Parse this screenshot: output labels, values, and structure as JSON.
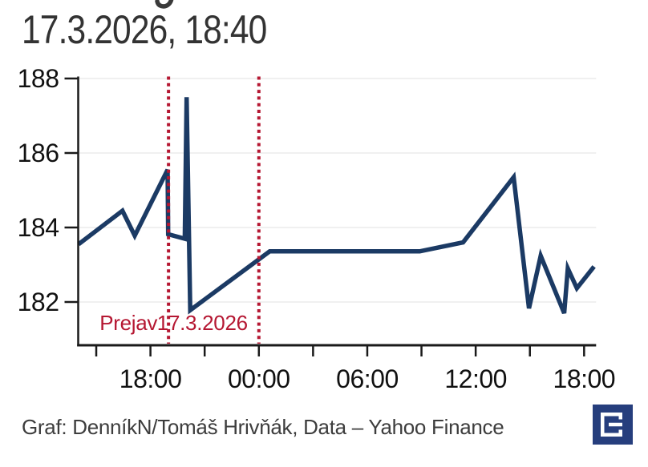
{
  "page": {
    "title": "17.3.2026, 18:40",
    "footer": {
      "credit": "Graf: DenníkN/Tomáš Hrivňák, Data – Yahoo Finance",
      "logo": "dennik-e-logo"
    }
  },
  "colors": {
    "line": "#1b3a64",
    "accent_red": "#b51732",
    "axis": "#1a1a1a",
    "tick_label": "#111111",
    "grid": "#ececec",
    "title_text": "#333333",
    "footer_text": "#3d3d3d",
    "logo_bg": "#263e7d",
    "logo_glyph": "#ffffff"
  },
  "chart_data": {
    "type": "line",
    "title": "17.3.2026, 18:40",
    "xlabel": "",
    "ylabel": "",
    "grid": "horizontal-only",
    "legend": "none",
    "ylim": [
      181.4,
      188.3
    ],
    "y_ticks": [
      182,
      184,
      186,
      188
    ],
    "x_unit": "hours, t=0 at first 18:00 tick",
    "x_minor_ticks": [
      -3,
      0,
      3,
      6,
      9,
      12,
      15,
      18,
      21,
      24
    ],
    "x_tick_labels": [
      {
        "t": 0,
        "label": "18:00"
      },
      {
        "t": 6,
        "label": "00:00"
      },
      {
        "t": 12,
        "label": "06:00"
      },
      {
        "t": 18,
        "label": "12:00"
      },
      {
        "t": 24,
        "label": "18:00"
      }
    ],
    "series": [
      {
        "name": "price",
        "points": [
          [
            -3.98,
            183.55
          ],
          [
            -1.55,
            184.45
          ],
          [
            -0.87,
            183.78
          ],
          [
            0.95,
            185.55
          ],
          [
            0.98,
            183.82
          ],
          [
            1.9,
            183.7
          ],
          [
            2.0,
            187.5
          ],
          [
            2.2,
            181.78
          ],
          [
            6.6,
            183.36
          ],
          [
            14.9,
            183.36
          ],
          [
            17.3,
            183.6
          ],
          [
            20.1,
            185.35
          ],
          [
            20.95,
            181.83
          ],
          [
            21.6,
            183.24
          ],
          [
            22.9,
            181.7
          ],
          [
            23.1,
            182.9
          ],
          [
            23.6,
            182.37
          ],
          [
            24.55,
            182.95
          ]
        ]
      }
    ],
    "annotations": [
      {
        "t": 1.0,
        "label": "Prejav"
      },
      {
        "t": 6.0,
        "label": "17.3.2026"
      }
    ]
  }
}
